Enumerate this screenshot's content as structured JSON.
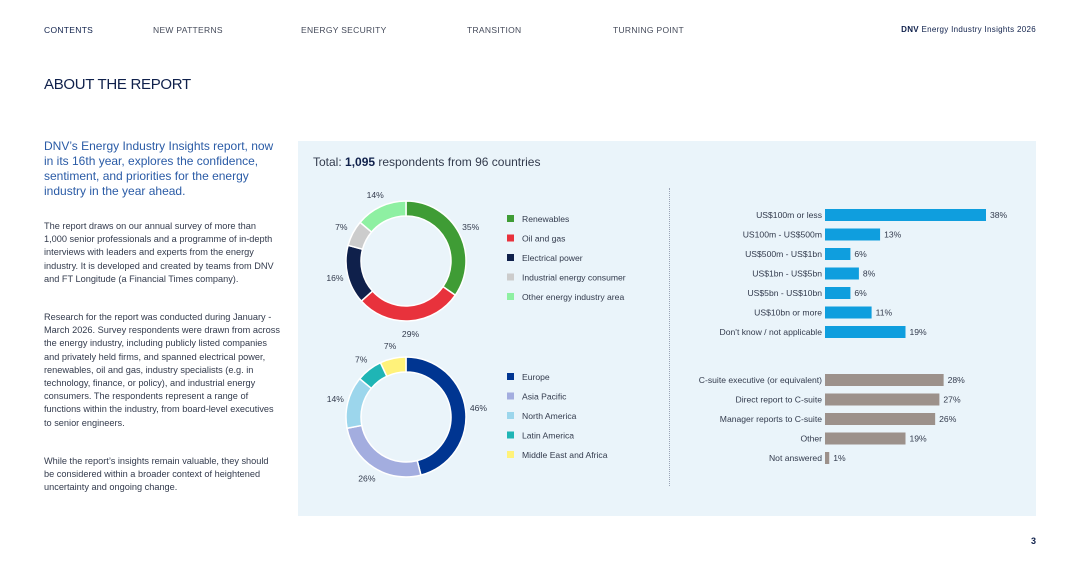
{
  "nav": {
    "items": [
      "CONTENTS",
      "NEW PATTERNS",
      "ENERGY SECURITY",
      "TRANSITION",
      "TURNING POINT"
    ],
    "brand_bold": "DNV",
    "brand_rest": " Energy Industry Insights 2026"
  },
  "page_title": "ABOUT THE REPORT",
  "intro": "DNV’s Energy Industry Insights report, now in its 16th year, explores the confidence, sentiment, and priorities for the energy industry in the year ahead.",
  "paragraphs": [
    "The report draws on our annual survey of more than 1,000 senior professionals and a programme of in-depth interviews with leaders and experts from the energy industry. It is developed and created by teams from DNV and FT Longitude (a Financial Times company).",
    "Research for the report was conducted during January - March 2026. Survey respondents were drawn from across the energy industry, including publicly listed companies and privately held firms, and spanned electrical power, renewables, oil and gas, industry specialists (e.g. in technology, finance, or policy), and industrial energy consumers. The respondents represent a range of functions within the industry, from board-level executives to senior engineers.",
    "While the report’s insights remain valuable, they should be considered within a broader context of heightened uncertainty and ongoing change."
  ],
  "total": {
    "prefix": "Total: ",
    "count": "1,095",
    "suffix": " respondents from 96 countries"
  },
  "page_number": "3",
  "chart_data": [
    {
      "type": "pie",
      "variant": "donut",
      "categories": [
        "Renewables",
        "Oil and gas",
        "Electrical power",
        "Industrial energy consumer",
        "Other energy industry area"
      ],
      "values": [
        35,
        29,
        16,
        7,
        14
      ],
      "labels": [
        "35%",
        "29%",
        "16%",
        "7%",
        "14%"
      ],
      "colors": [
        "#3f9c35",
        "#e8323c",
        "#0f204b",
        "#cccccc",
        "#8ef0a2"
      ],
      "legend": "right"
    },
    {
      "type": "pie",
      "variant": "donut",
      "categories": [
        "Europe",
        "Asia Pacific",
        "North America",
        "Latin America",
        "Middle East and Africa"
      ],
      "values": [
        46,
        26,
        14,
        7,
        7
      ],
      "labels": [
        "46%",
        "26%",
        "14%",
        "7%",
        "7%"
      ],
      "colors": [
        "#003591",
        "#a3addf",
        "#9cd6ec",
        "#1fb5b5",
        "#fff27a"
      ],
      "legend": "right"
    },
    {
      "type": "bar",
      "orientation": "horizontal",
      "categories": [
        "US$100m or less",
        "US100m - US$500m",
        "US$500m - US$1bn",
        "US$1bn - US$5bn",
        "US$5bn - US$10bn",
        "US$10bn or more",
        "Don't know / not applicable"
      ],
      "values": [
        38,
        13,
        6,
        8,
        6,
        11,
        19
      ],
      "labels": [
        "38%",
        "13%",
        "6%",
        "8%",
        "6%",
        "11%",
        "19%"
      ],
      "color": "#0f9ede",
      "xlim": [
        0,
        38
      ]
    },
    {
      "type": "bar",
      "orientation": "horizontal",
      "categories": [
        "C-suite executive (or equivalent)",
        "Direct report to C-suite",
        "Manager reports to C-suite",
        "Other",
        "Not answered"
      ],
      "values": [
        28,
        27,
        26,
        19,
        1
      ],
      "labels": [
        "28%",
        "27%",
        "26%",
        "19%",
        "1%"
      ],
      "color": "#9c918b",
      "xlim": [
        0,
        38
      ]
    }
  ]
}
